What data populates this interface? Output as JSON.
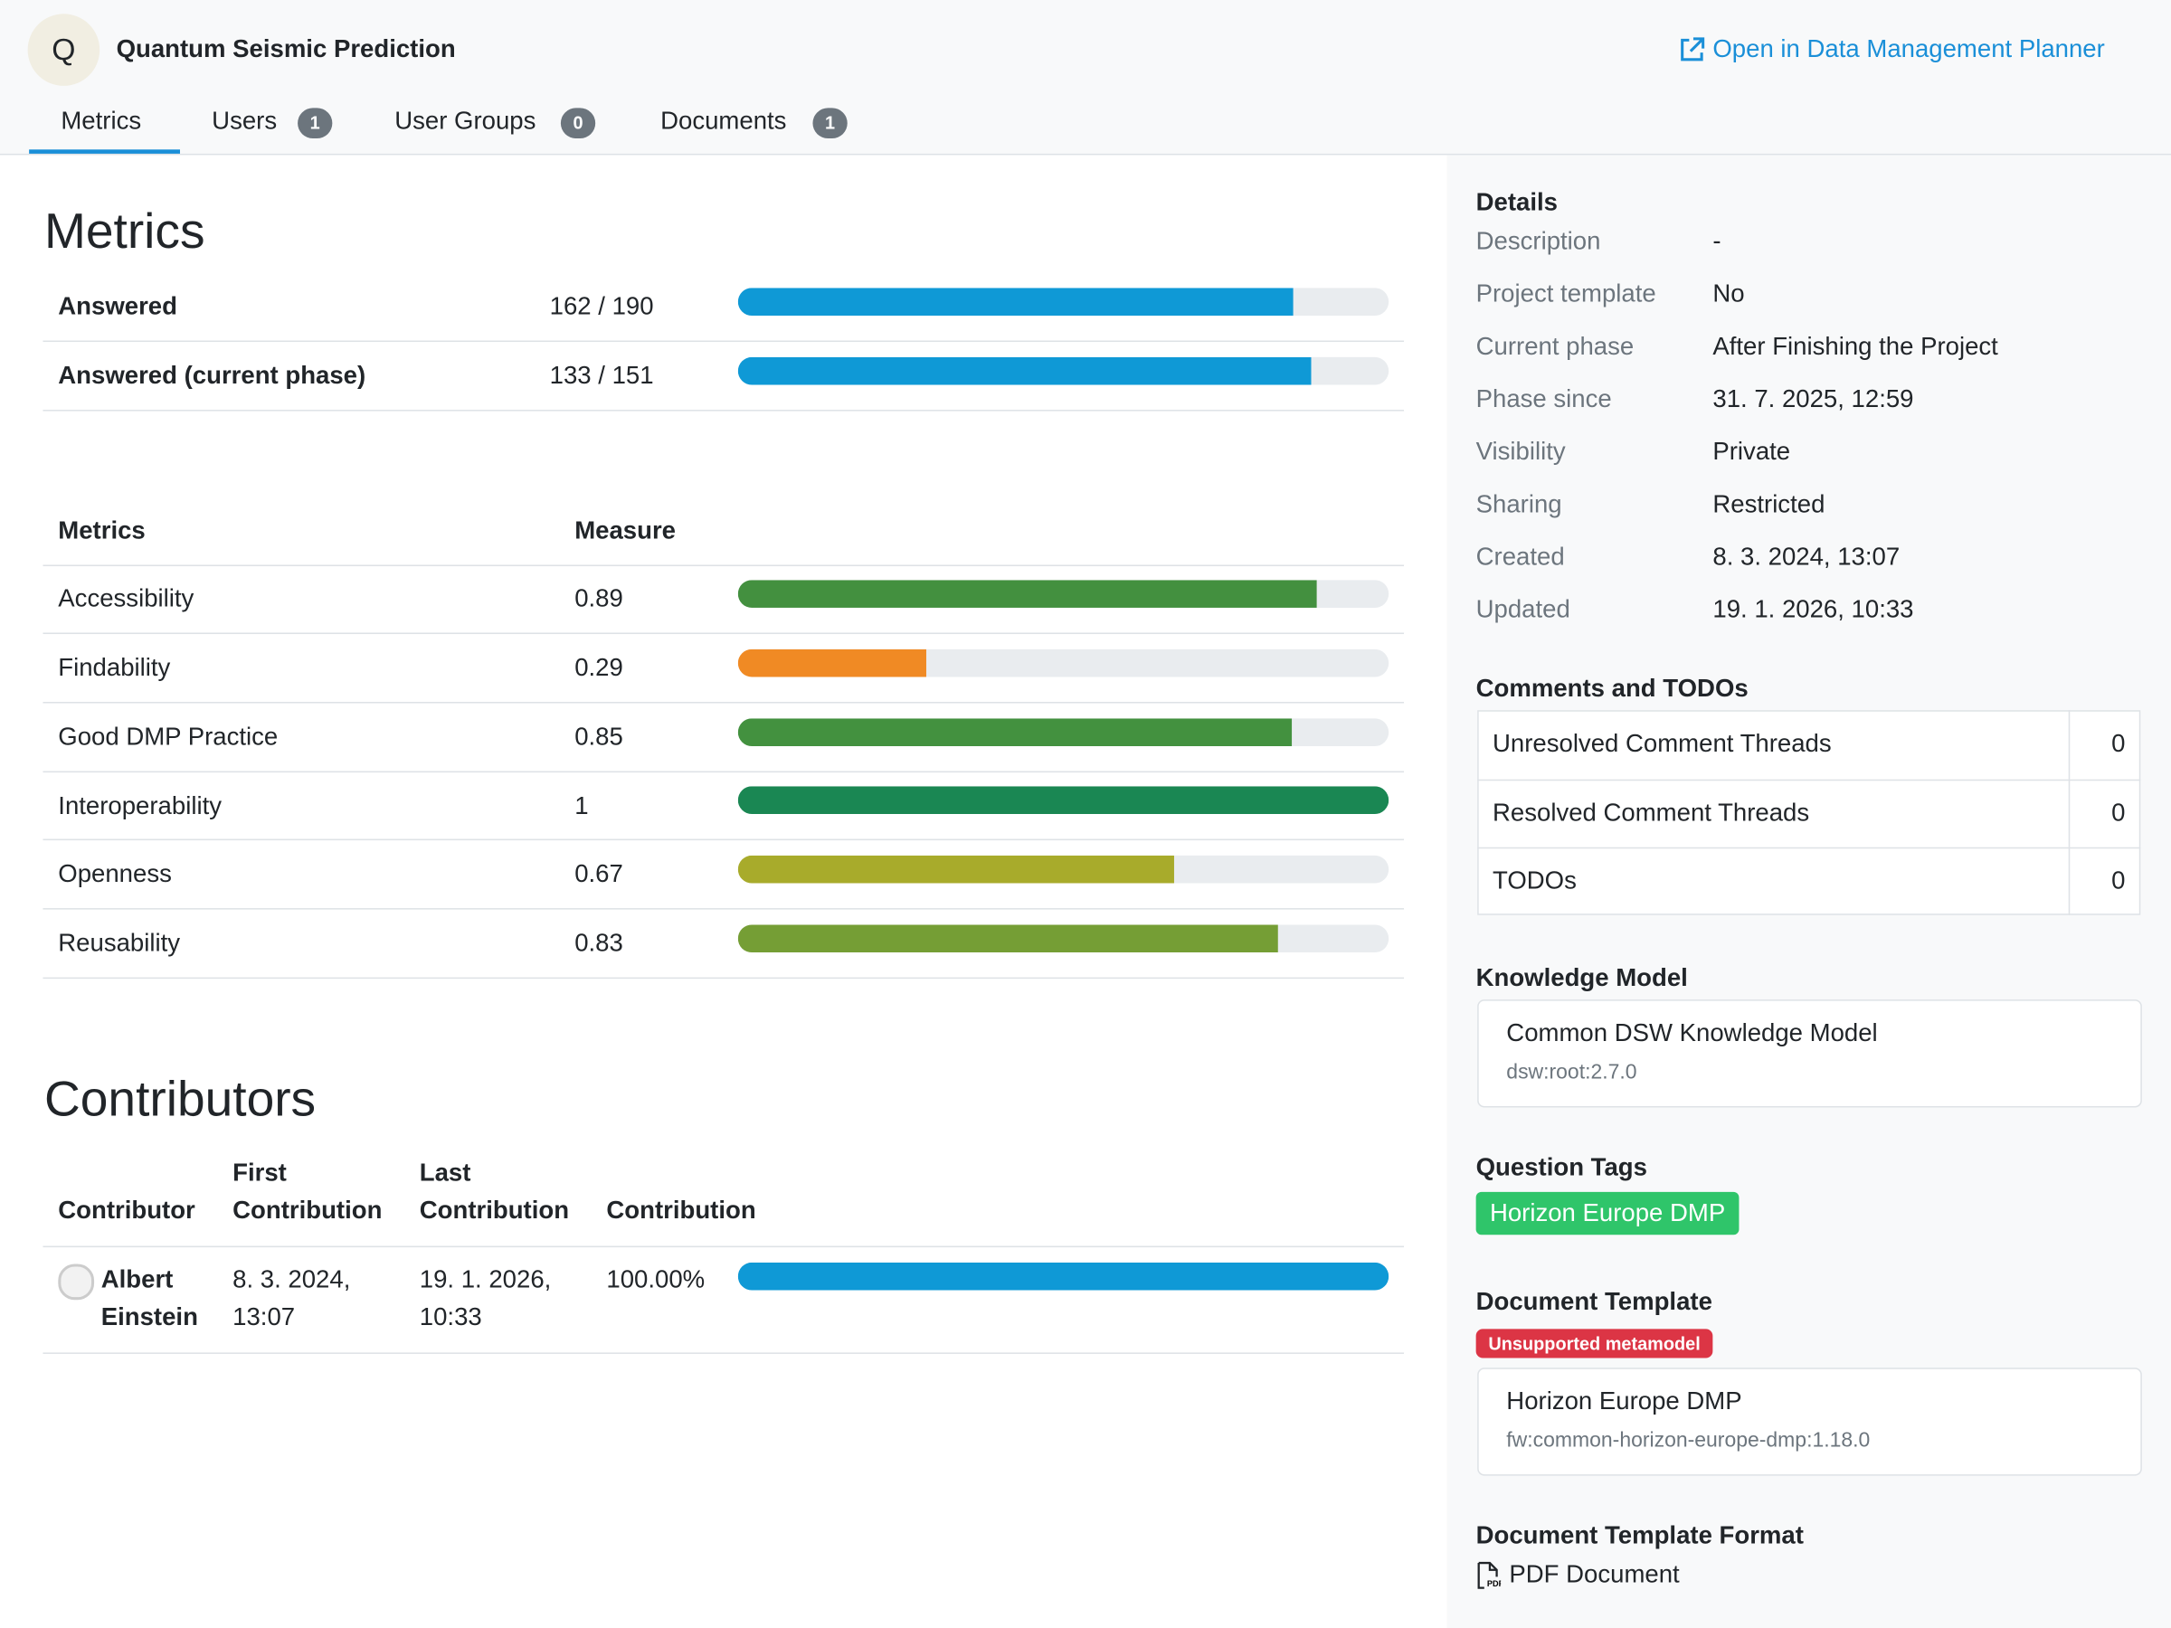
{
  "header": {
    "avatar": "Q",
    "title": "Quantum Seismic Prediction",
    "link": "Open in Data Management Planner"
  },
  "tabs": [
    {
      "label": "Metrics"
    },
    {
      "label": "Users",
      "count": 1
    },
    {
      "label": "User Groups",
      "count": 0
    },
    {
      "label": "Documents",
      "count": 1
    }
  ],
  "metrics_heading": "Metrics",
  "progress": [
    {
      "label": "Answered",
      "text": "162 / 190",
      "value": 162,
      "total": 190,
      "color": "#0f99d6"
    },
    {
      "label": "Answered (current phase)",
      "text": "133 / 151",
      "value": 133,
      "total": 151,
      "color": "#0f99d6"
    }
  ],
  "metrics": {
    "header": [
      "Metrics",
      "Measure"
    ],
    "rows": [
      {
        "name": "Accessibility",
        "value": 0.89,
        "color": "#43903f"
      },
      {
        "name": "Findability",
        "value": 0.29,
        "color": "#f08a24"
      },
      {
        "name": "Good DMP Practice",
        "value": 0.85,
        "color": "#43913f"
      },
      {
        "name": "Interoperability",
        "value": 1,
        "color": "#1a8753"
      },
      {
        "name": "Openness",
        "value": 0.67,
        "color": "#a8ab2b"
      },
      {
        "name": "Reusability",
        "value": 0.83,
        "color": "#759e35"
      }
    ]
  },
  "contributors": {
    "title": "Contributors",
    "header": [
      "Contributor",
      "First Contribution",
      "Last Contribution",
      "Contribution"
    ],
    "rows": [
      {
        "name": "Albert Einstein",
        "first": "8. 3. 2024, 13:07",
        "last": "19. 1. 2026, 10:33",
        "value": 100,
        "value_label": "100.00%",
        "color": "#0f99d6"
      }
    ]
  },
  "details": {
    "title": "Details",
    "rows": [
      [
        "Description",
        "-"
      ],
      [
        "Project template",
        "No"
      ],
      [
        "Current phase",
        "After Finishing the Project"
      ],
      [
        "Phase since",
        "31. 7. 2025, 12:59"
      ],
      [
        "Visibility",
        "Private"
      ],
      [
        "Sharing",
        "Restricted"
      ],
      [
        "Created",
        "8. 3. 2024, 13:07"
      ],
      [
        "Updated",
        "19. 1. 2026, 10:33"
      ]
    ]
  },
  "comments": {
    "title": "Comments and TODOs",
    "rows": [
      {
        "label": "Unresolved Comment Threads",
        "count": 0
      },
      {
        "label": "Resolved Comment Threads",
        "count": 0
      },
      {
        "label": "TODOs",
        "count": 0
      }
    ]
  },
  "knowledge_model": {
    "title": "Knowledge Model",
    "name": "Common DSW Knowledge Model",
    "id": "dsw:root:2.7.0"
  },
  "question_tags": {
    "title": "Question Tags",
    "tags": [
      "Horizon Europe DMP"
    ]
  },
  "document_template": {
    "title": "Document Template",
    "badge": "Unsupported metamodel",
    "name": "Horizon Europe DMP",
    "id": "fw:common-horizon-europe-dmp:1.18.0"
  },
  "document_template_format": {
    "title": "Document Template Format",
    "format": "PDF Document"
  }
}
